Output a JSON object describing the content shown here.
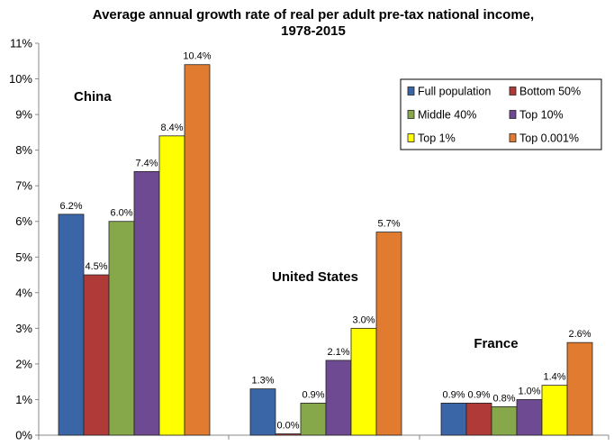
{
  "chart_data": {
    "type": "bar",
    "title_lines": [
      "Average annual growth rate of real per adult pre-tax national income,",
      "1978-2015"
    ],
    "categories": [
      "China",
      "United States",
      "France"
    ],
    "series": [
      {
        "name": "Full population",
        "color": "#3a66a8",
        "values": [
          6.2,
          1.3,
          0.9
        ],
        "labels": [
          "6.2%",
          "1.3%",
          "0.9%"
        ]
      },
      {
        "name": "Bottom 50%",
        "color": "#b03a38",
        "values": [
          4.5,
          0.0,
          0.9
        ],
        "labels": [
          "4.5%",
          "0.0%",
          "0.9%"
        ]
      },
      {
        "name": "Middle 40%",
        "color": "#86a84a",
        "values": [
          6.0,
          0.9,
          0.8
        ],
        "labels": [
          "6.0%",
          "0.9%",
          "0.8%"
        ]
      },
      {
        "name": "Top 10%",
        "color": "#6e4a92",
        "values": [
          7.4,
          2.1,
          1.0
        ],
        "labels": [
          "7.4%",
          "2.1%",
          "1.0%"
        ]
      },
      {
        "name": "Top 1%",
        "color": "#ffff00",
        "values": [
          8.4,
          3.0,
          1.4
        ],
        "labels": [
          "8.4%",
          "3.0%",
          "1.4%"
        ]
      },
      {
        "name": "Top 0.001%",
        "color": "#e07b30",
        "values": [
          10.4,
          5.7,
          2.6
        ],
        "labels": [
          "10.4%",
          "5.7%",
          "2.6%"
        ]
      }
    ],
    "ylim": [
      0,
      11
    ],
    "yticks": [
      "0%",
      "1%",
      "2%",
      "3%",
      "4%",
      "5%",
      "6%",
      "7%",
      "8%",
      "9%",
      "10%",
      "11%"
    ],
    "grid": false,
    "legend_position": "top-right"
  }
}
